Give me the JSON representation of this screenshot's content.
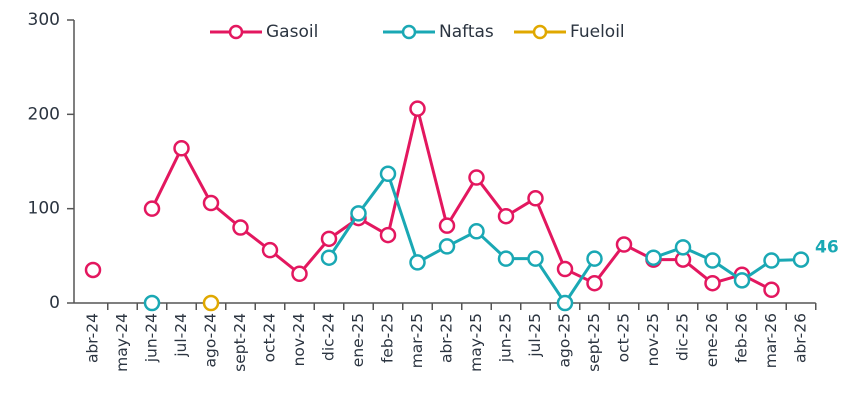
{
  "chart_data": {
    "type": "line",
    "categories": [
      "abr-24",
      "may-24",
      "jun-24",
      "jul-24",
      "ago-24",
      "sept-24",
      "oct-24",
      "nov-24",
      "dic-24",
      "ene-25",
      "feb-25",
      "mar-25",
      "abr-25",
      "may-25",
      "jun-25",
      "jul-25",
      "ago-25",
      "sept-25",
      "oct-25",
      "nov-25",
      "dic-25",
      "ene-26",
      "feb-26",
      "mar-26",
      "abr-26"
    ],
    "series": [
      {
        "name": "Gasoil",
        "color": "#e3175f",
        "values": [
          35,
          null,
          100,
          164,
          106,
          80,
          56,
          31,
          68,
          90,
          72,
          206,
          82,
          133,
          92,
          111,
          36,
          21,
          62,
          46,
          46,
          21,
          30,
          14,
          null
        ]
      },
      {
        "name": "Naftas",
        "color": "#1aa8b4",
        "values": [
          null,
          null,
          0,
          null,
          null,
          null,
          null,
          null,
          48,
          95,
          137,
          43,
          60,
          76,
          47,
          47,
          0,
          47,
          null,
          48,
          59,
          45,
          24,
          45,
          46
        ],
        "value_labels": [
          null,
          null,
          null,
          null,
          null,
          null,
          null,
          null,
          null,
          null,
          null,
          null,
          null,
          null,
          null,
          null,
          null,
          null,
          null,
          null,
          null,
          null,
          null,
          null,
          "46"
        ]
      },
      {
        "name": "Fueloil",
        "color": "#e0a800",
        "values": [
          null,
          null,
          null,
          null,
          0,
          null,
          null,
          null,
          null,
          null,
          null,
          null,
          null,
          null,
          null,
          null,
          null,
          null,
          null,
          null,
          null,
          null,
          null,
          null,
          null
        ]
      }
    ],
    "ylim": [
      0,
      300
    ],
    "yticks": [
      0,
      100,
      200,
      300
    ],
    "grid": false,
    "legend": "top"
  }
}
